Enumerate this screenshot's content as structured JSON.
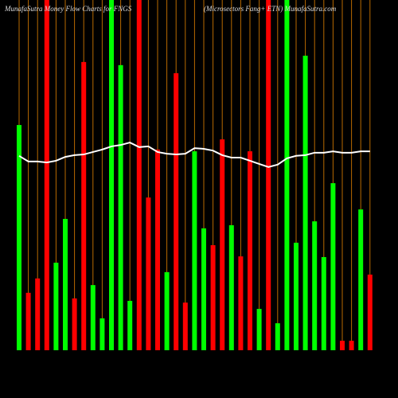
{
  "chart_data": {
    "type": "bar",
    "title": "MunafaSutra  Money Flow  Charts for FNGS",
    "subtitle": "(Microsectors Fang+   ETN) MunafaSutra.com",
    "values": [
      64.3,
      16.4,
      20.5,
      100,
      25,
      37.5,
      14.8,
      82.3,
      18.6,
      9.1,
      100,
      81.4,
      14.1,
      100,
      43.6,
      57.3,
      22.3,
      79.1,
      13.6,
      56.8,
      34.8,
      30,
      60.2,
      35.7,
      26.8,
      56.8,
      11.8,
      100,
      7.7,
      100,
      30.7,
      84.1,
      36.8,
      26.6,
      47.7,
      2.7,
      2.7,
      40.2,
      21.6
    ],
    "colors": [
      "#00ff00",
      "#ff0000",
      "#ff0000",
      "#ff0000",
      "#00ff00",
      "#00ff00",
      "#ff0000",
      "#ff0000",
      "#00ff00",
      "#00ff00",
      "#00ff00",
      "#00ff00",
      "#00ff00",
      "#ff0000",
      "#ff0000",
      "#ff0000",
      "#00ff00",
      "#ff0000",
      "#ff0000",
      "#00ff00",
      "#00ff00",
      "#ff0000",
      "#ff0000",
      "#00ff00",
      "#ff0000",
      "#ff0000",
      "#00ff00",
      "#ff0000",
      "#00ff00",
      "#00ff00",
      "#00ff00",
      "#00ff00",
      "#00ff00",
      "#00ff00",
      "#00ff00",
      "#ff0000",
      "#ff0000",
      "#00ff00",
      "#ff0000"
    ],
    "line": {
      "color": "#ffffff",
      "values": [
        55.5,
        53.9,
        53.9,
        53.6,
        54.1,
        55.2,
        55.7,
        55.9,
        56.6,
        57.3,
        58.2,
        58.6,
        59.3,
        58.0,
        58.2,
        56.6,
        56.1,
        55.9,
        56.1,
        57.7,
        57.5,
        57.0,
        55.7,
        55.0,
        55.0,
        54.1,
        53.2,
        52.3,
        53.0,
        54.8,
        55.5,
        55.7,
        56.4,
        56.4,
        56.8,
        56.4,
        56.4,
        56.8,
        56.8
      ]
    },
    "grid_color": "#b86a00",
    "ylim": [
      0,
      100
    ]
  }
}
